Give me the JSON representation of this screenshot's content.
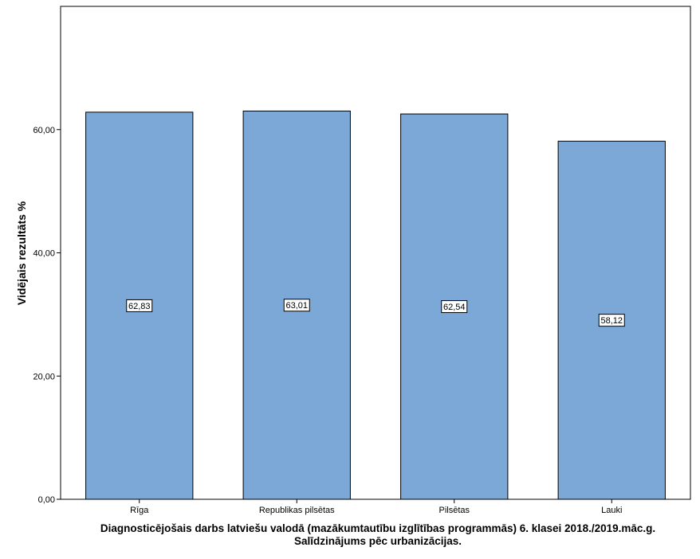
{
  "chart_data": {
    "type": "bar",
    "categories": [
      "Rīga",
      "Republikas pilsētas",
      "Pilsētas",
      "Lauki"
    ],
    "values": [
      62.83,
      63.01,
      62.54,
      58.12
    ],
    "data_labels": [
      "62,83",
      "63,01",
      "62,54",
      "58,12"
    ],
    "ylabel": "Vidējais rezultāts %",
    "xlabel_lines": [
      "Diagnosticējošais darbs latviešu valodā (mazākumtautību izglītības programmās) 6. klasei 2018./2019.māc.g.",
      "Salīdzinājums pēc urbanizācijas."
    ],
    "ylim": [
      0,
      80
    ],
    "yticks": [
      0,
      20,
      40,
      60
    ],
    "ytick_labels": [
      "0,00",
      "20,00",
      "40,00",
      "60,00"
    ],
    "bar_color": "#7ba8d6",
    "grid": false,
    "legend": "none"
  }
}
